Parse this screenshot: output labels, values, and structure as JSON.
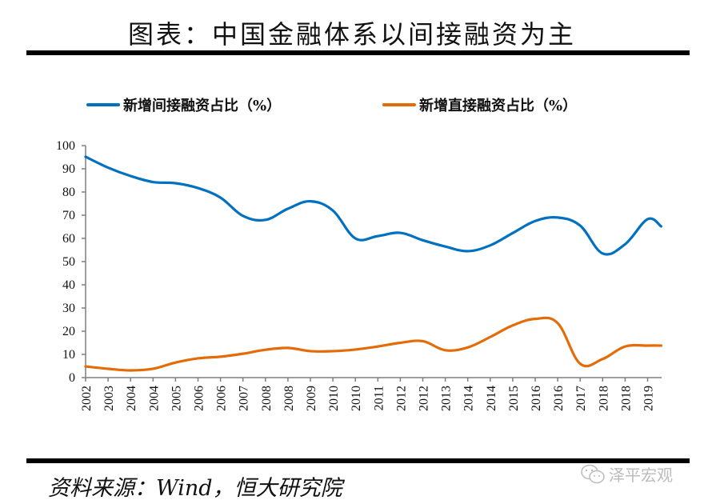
{
  "header": {
    "title": "图表：中国金融体系以间接融资为主"
  },
  "footer": {
    "source": "资料来源：Wind，恒大研究院",
    "watermark": "泽平宏观",
    "watermark_icon": "wechat-icon"
  },
  "chart_data": {
    "type": "line",
    "title": "图表：中国金融体系以间接融资为主",
    "xlabel": "",
    "ylabel": "",
    "ylim": [
      0,
      100
    ],
    "yticks": [
      0,
      10,
      20,
      30,
      40,
      50,
      60,
      70,
      80,
      90,
      100
    ],
    "grid": false,
    "legend_position": "top",
    "categories": [
      "2002",
      "2003",
      "2004",
      "2004",
      "2005",
      "2006",
      "2006",
      "2007",
      "2008",
      "2008",
      "2009",
      "2010",
      "2010",
      "2011",
      "2012",
      "2012",
      "2013",
      "2014",
      "2014",
      "2015",
      "2016",
      "2016",
      "2017",
      "2018",
      "2018",
      "2019"
    ],
    "x_positions": [
      0,
      1,
      2,
      3,
      4,
      5,
      6,
      7,
      8,
      9,
      10,
      11,
      12,
      13,
      14,
      15,
      16,
      17,
      18,
      19,
      20,
      21,
      22,
      23,
      24,
      25,
      25.6
    ],
    "series": [
      {
        "name": "新增间接融资占比（%）",
        "color": "#0070C0",
        "values": [
          95.2,
          90.5,
          86.9,
          84.3,
          83.8,
          81.7,
          77.6,
          69.7,
          68.0,
          72.8,
          76.0,
          72.0,
          60.0,
          61.0,
          62.4,
          59.2,
          56.5,
          54.5,
          57.0,
          62.3,
          67.5,
          69.0,
          65.5,
          53.5,
          57.5,
          68.3,
          65.2
        ]
      },
      {
        "name": "新增直接融资占比（%）",
        "color": "#E36C09",
        "values": [
          4.8,
          3.8,
          3.1,
          3.8,
          6.5,
          8.3,
          9.0,
          10.3,
          12.0,
          12.8,
          11.4,
          11.4,
          12.1,
          13.4,
          15.0,
          15.7,
          11.8,
          13.0,
          17.5,
          22.5,
          25.3,
          23.5,
          6.0,
          8.0,
          13.4,
          13.8,
          13.8
        ]
      }
    ]
  }
}
